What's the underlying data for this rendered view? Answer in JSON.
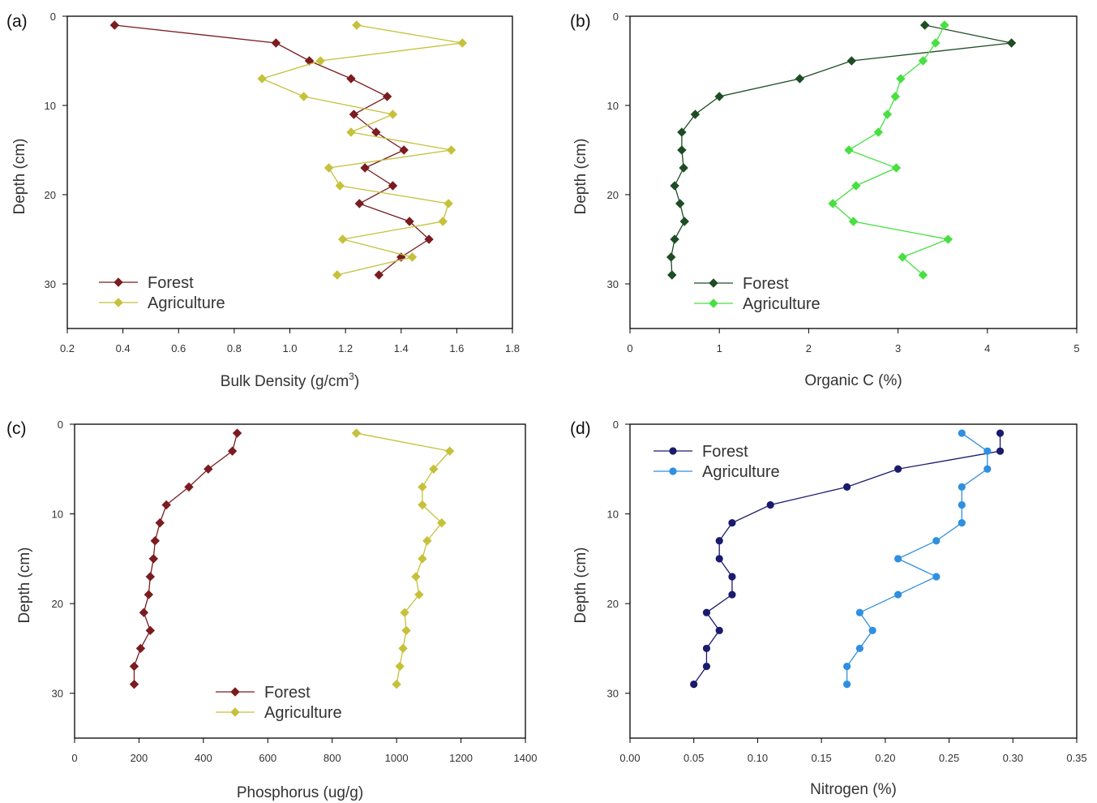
{
  "chart_data": [
    {
      "type": "line",
      "panel_label": "(a)",
      "xlabel": "Bulk Density (g/cm",
      "xlabel_sup": "3",
      "xlabel_suffix": ")",
      "ylabel": "Depth (cm)",
      "xlim": [
        0.2,
        1.8
      ],
      "ylim": [
        0,
        35
      ],
      "y_inverted": true,
      "xticks": [
        "0.2",
        "0.4",
        "0.6",
        "0.8",
        "1.0",
        "1.2",
        "1.4",
        "1.6",
        "1.8"
      ],
      "yticks": [
        "0",
        "10",
        "20",
        "30"
      ],
      "legend_position": "bottom-left",
      "series": [
        {
          "name": "Forest",
          "color": "#7b1c20",
          "marker": "diamond",
          "x": [
            0.37,
            0.95,
            1.07,
            1.22,
            1.35,
            1.23,
            1.31,
            1.41,
            1.27,
            1.37,
            1.25,
            1.43,
            1.5,
            1.4,
            1.32
          ],
          "y": [
            1,
            3,
            5,
            7,
            9,
            11,
            13,
            15,
            17,
            19,
            21,
            23,
            25,
            27,
            29
          ]
        },
        {
          "name": "Agriculture",
          "color": "#c5c13a",
          "marker": "diamond",
          "x": [
            1.24,
            1.62,
            1.11,
            0.9,
            1.05,
            1.37,
            1.22,
            1.58,
            1.14,
            1.18,
            1.57,
            1.55,
            1.19,
            1.44,
            1.17
          ],
          "y": [
            1,
            3,
            5,
            7,
            9,
            11,
            13,
            15,
            17,
            19,
            21,
            23,
            25,
            27,
            29
          ]
        }
      ]
    },
    {
      "type": "line",
      "panel_label": "(b)",
      "xlabel": "Organic C (%)",
      "ylabel": "Depth (cm)",
      "xlim": [
        0,
        5
      ],
      "ylim": [
        0,
        35
      ],
      "y_inverted": true,
      "xticks": [
        "0",
        "1",
        "2",
        "3",
        "4",
        "5"
      ],
      "yticks": [
        "0",
        "10",
        "20",
        "30"
      ],
      "legend_position": "bottom-left",
      "series": [
        {
          "name": "Forest",
          "color": "#1e4d25",
          "marker": "diamond",
          "x": [
            3.3,
            4.27,
            2.48,
            1.9,
            1.0,
            0.73,
            0.58,
            0.58,
            0.6,
            0.5,
            0.56,
            0.61,
            0.5,
            0.46,
            0.47
          ],
          "y": [
            1,
            3,
            5,
            7,
            9,
            11,
            13,
            15,
            17,
            19,
            21,
            23,
            25,
            27,
            29
          ]
        },
        {
          "name": "Agriculture",
          "color": "#46e040",
          "marker": "diamond",
          "x": [
            3.52,
            3.42,
            3.28,
            3.03,
            2.97,
            2.88,
            2.78,
            2.45,
            2.98,
            2.53,
            2.27,
            2.5,
            3.56,
            3.05,
            3.28
          ],
          "y": [
            1,
            3,
            5,
            7,
            9,
            11,
            13,
            15,
            17,
            19,
            21,
            23,
            25,
            27,
            29
          ]
        }
      ]
    },
    {
      "type": "line",
      "panel_label": "(c)",
      "xlabel": "Phosphorus (ug/g)",
      "ylabel": "Depth (cm)",
      "xlim": [
        0,
        1400
      ],
      "ylim": [
        0,
        35
      ],
      "y_inverted": true,
      "xticks": [
        "0",
        "200",
        "400",
        "600",
        "800",
        "1000",
        "1200",
        "1400"
      ],
      "yticks": [
        "0",
        "10",
        "20",
        "30"
      ],
      "legend_position": "bottom-center",
      "series": [
        {
          "name": "Forest",
          "color": "#7b1c20",
          "marker": "diamond",
          "x": [
            505,
            490,
            415,
            355,
            285,
            265,
            250,
            245,
            235,
            230,
            215,
            235,
            205,
            185,
            185
          ],
          "y": [
            1,
            3,
            5,
            7,
            9,
            11,
            13,
            15,
            17,
            19,
            21,
            23,
            25,
            27,
            29
          ]
        },
        {
          "name": "Agriculture",
          "color": "#c5c13a",
          "marker": "diamond",
          "x": [
            875,
            1165,
            1115,
            1080,
            1080,
            1140,
            1095,
            1080,
            1060,
            1070,
            1025,
            1030,
            1020,
            1010,
            1000
          ],
          "y": [
            1,
            3,
            5,
            7,
            9,
            11,
            13,
            15,
            17,
            19,
            21,
            23,
            25,
            27,
            29
          ]
        }
      ]
    },
    {
      "type": "line",
      "panel_label": "(d)",
      "xlabel": "Nitrogen (%)",
      "ylabel": "Depth (cm)",
      "xlim": [
        0,
        0.35
      ],
      "ylim": [
        0,
        35
      ],
      "y_inverted": true,
      "xticks": [
        "0.00",
        "0.05",
        "0.10",
        "0.15",
        "0.20",
        "0.25",
        "0.30",
        "0.35"
      ],
      "yticks": [
        "0",
        "10",
        "20",
        "30"
      ],
      "legend_position": "top-left",
      "series": [
        {
          "name": "Forest",
          "color": "#1a1a6e",
          "marker": "circle",
          "x": [
            0.29,
            0.29,
            0.21,
            0.17,
            0.11,
            0.08,
            0.07,
            0.07,
            0.08,
            0.08,
            0.06,
            0.07,
            0.06,
            0.06,
            0.05
          ],
          "y": [
            1,
            3,
            5,
            7,
            9,
            11,
            13,
            15,
            17,
            19,
            21,
            23,
            25,
            27,
            29
          ]
        },
        {
          "name": "Agriculture",
          "color": "#2f8fe0",
          "marker": "circle",
          "x": [
            0.26,
            0.28,
            0.28,
            0.26,
            0.26,
            0.26,
            0.24,
            0.21,
            0.24,
            0.21,
            0.18,
            0.19,
            0.18,
            0.17,
            0.17
          ],
          "y": [
            1,
            3,
            5,
            7,
            9,
            11,
            13,
            15,
            17,
            19,
            21,
            23,
            25,
            27,
            29
          ]
        }
      ]
    }
  ]
}
